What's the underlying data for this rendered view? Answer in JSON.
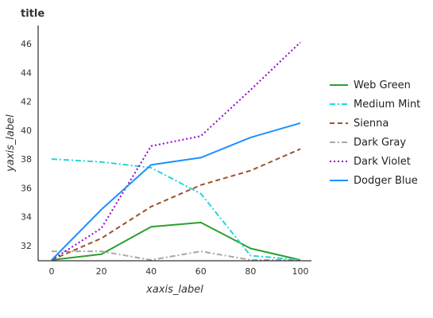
{
  "chart_data": {
    "type": "line",
    "title": "title",
    "xlabel": "xaxis_label",
    "ylabel": "yaxis_label",
    "xlim": [
      0,
      100
    ],
    "ylim": [
      31,
      46.5
    ],
    "xticks": [
      "0",
      "20",
      "40",
      "60",
      "80",
      "100"
    ],
    "yticks": [
      "32",
      "34",
      "36",
      "38",
      "40",
      "42",
      "44",
      "46"
    ],
    "grid": false,
    "legend_position": "right",
    "x": [
      0,
      20,
      40,
      60,
      80,
      100
    ],
    "series": [
      {
        "name": "Web Green",
        "color": "#2ca02c",
        "dash": "solid",
        "values": [
          31,
          31.4,
          33.3,
          33.6,
          31.8,
          31
        ]
      },
      {
        "name": "Medium Mint",
        "color": "#2ad4d4",
        "dash": "dashdot",
        "values": [
          38,
          37.8,
          37.4,
          35.6,
          31.3,
          31
        ]
      },
      {
        "name": "Sienna",
        "color": "#a0522d",
        "dash": "dashed",
        "values": [
          31,
          32.5,
          34.7,
          36.2,
          37.2,
          38.7
        ]
      },
      {
        "name": "Dark Gray",
        "color": "#a9a9a9",
        "dash": "dashdot",
        "values": [
          31.6,
          31.6,
          31,
          31.6,
          31,
          31
        ]
      },
      {
        "name": "Dark Violet",
        "color": "#9400d3",
        "dash": "dotted",
        "values": [
          31,
          33.2,
          38.9,
          39.6,
          42.8,
          46.1
        ]
      },
      {
        "name": "Dodger Blue",
        "color": "#1e90ff",
        "dash": "solid",
        "values": [
          31,
          34.5,
          37.6,
          38.1,
          39.5,
          40.5
        ]
      }
    ]
  }
}
